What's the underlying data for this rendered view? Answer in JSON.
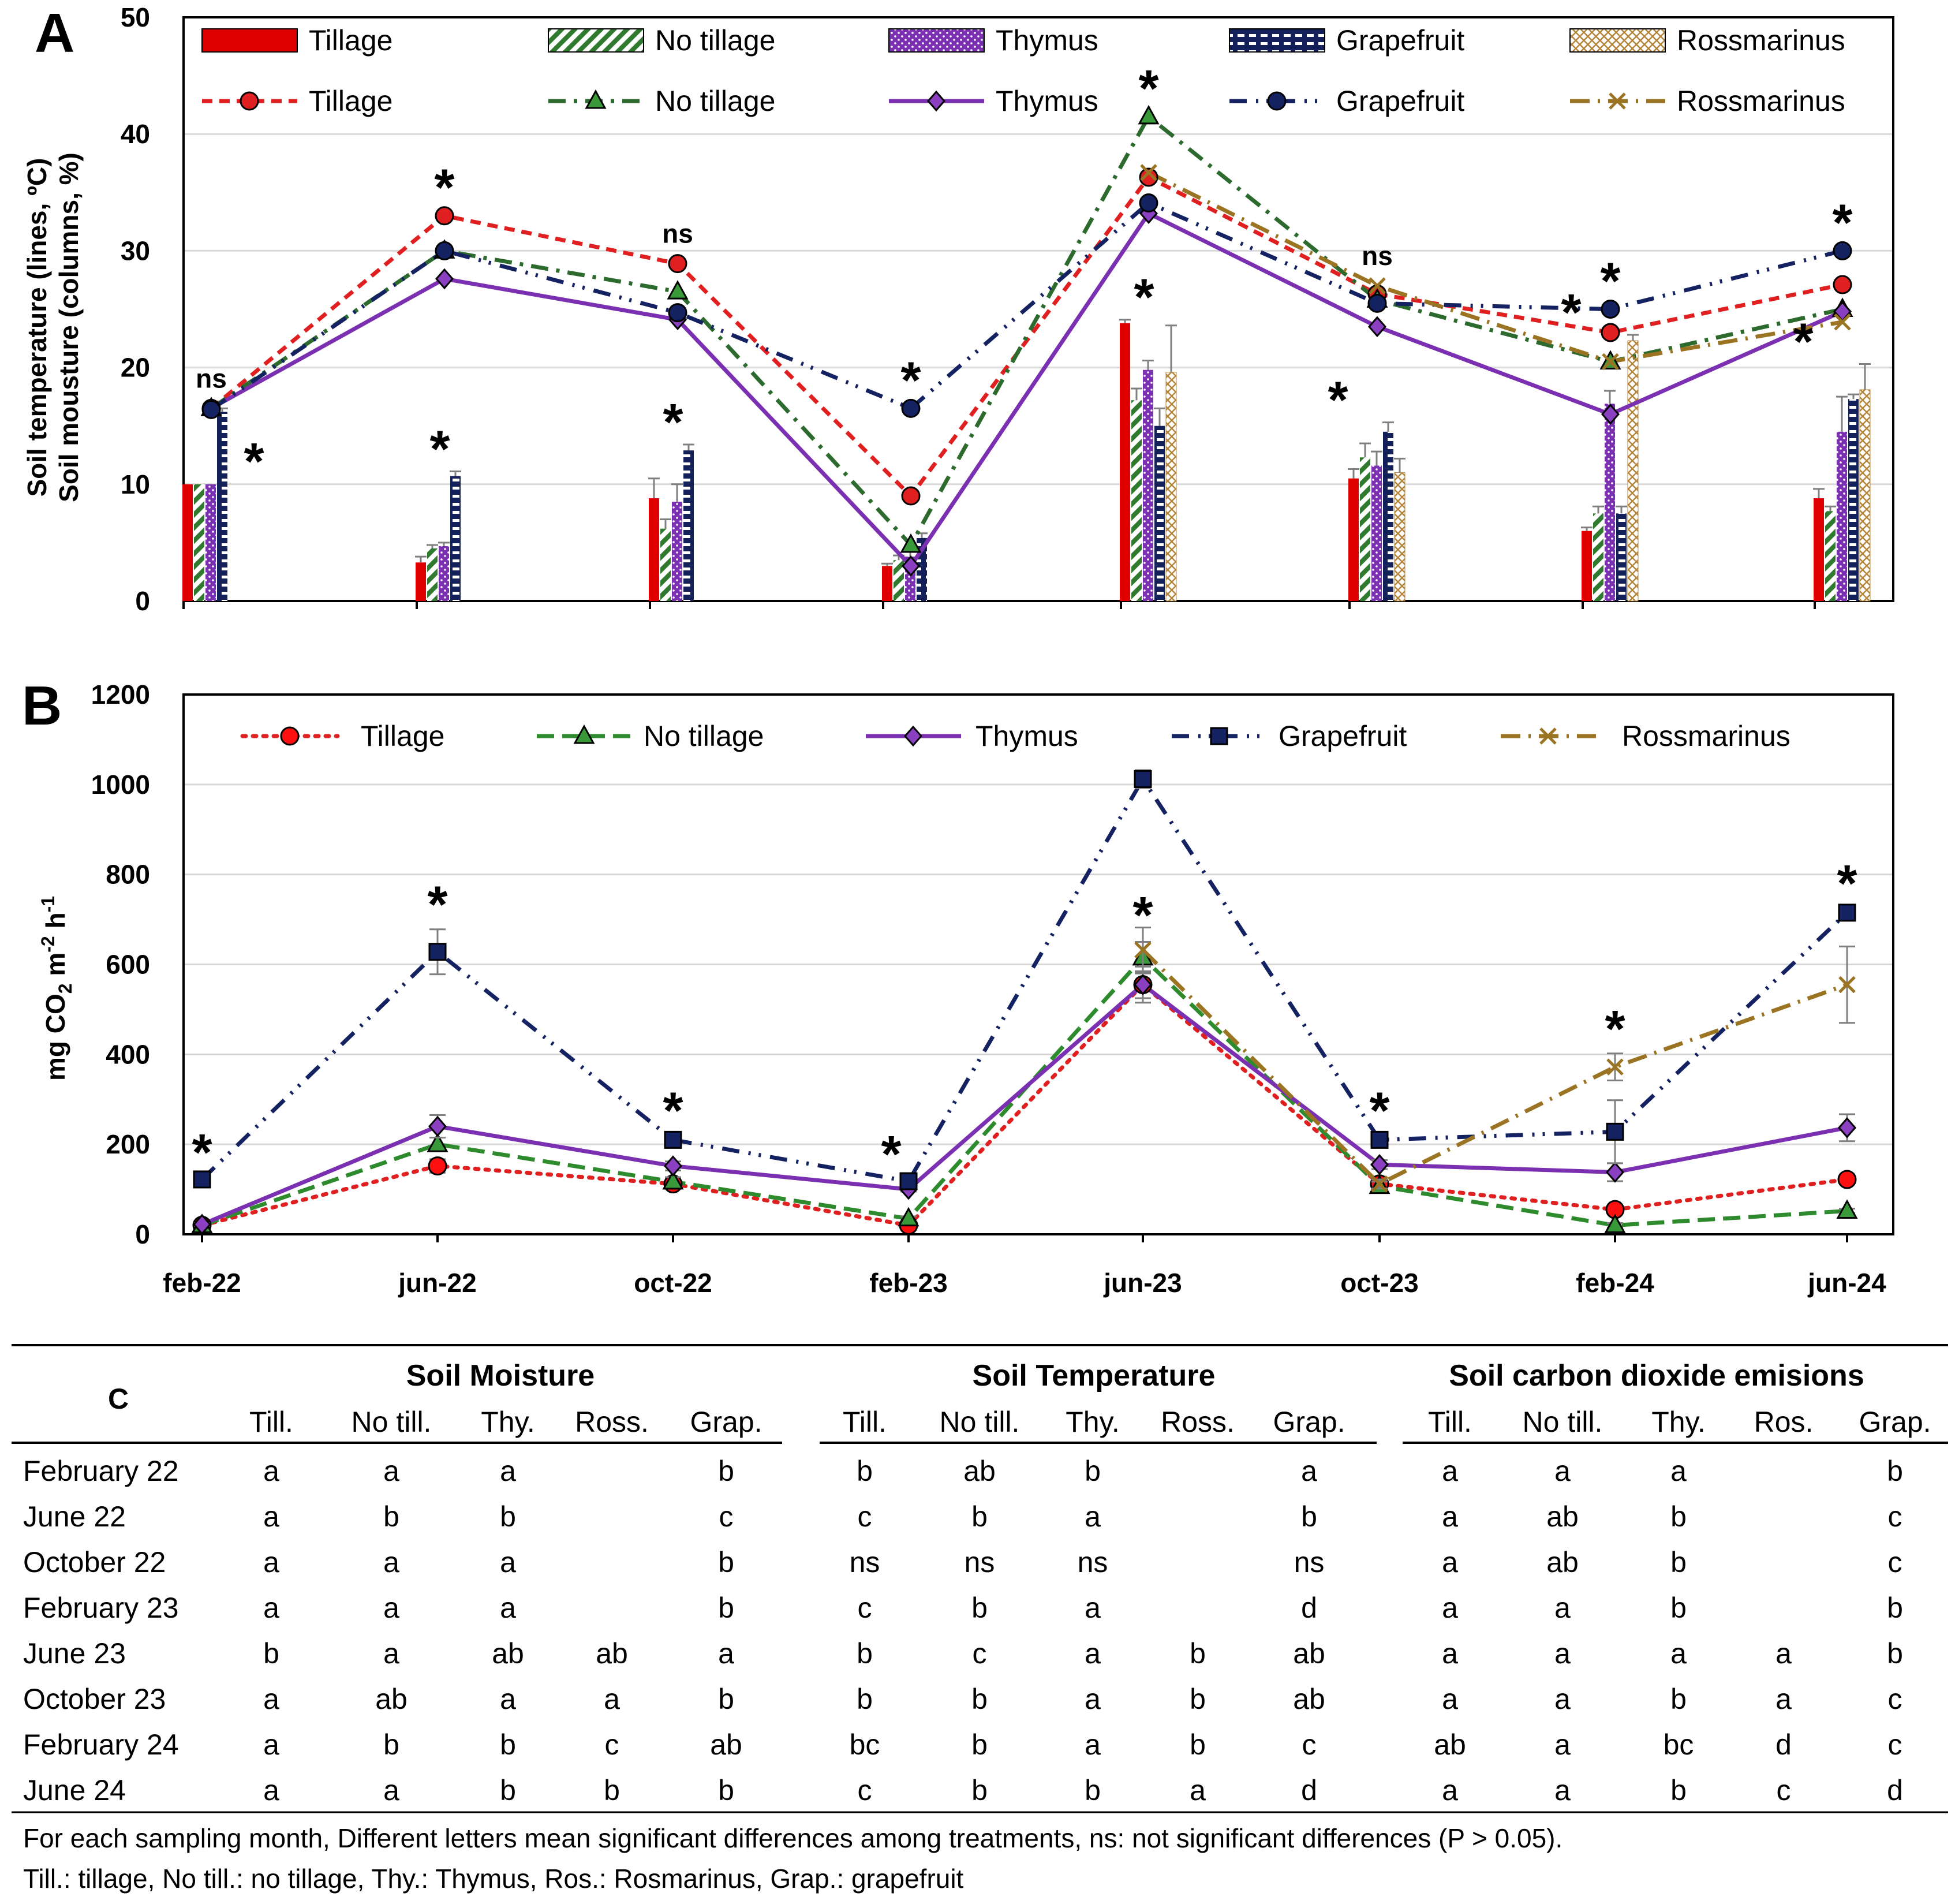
{
  "panel_labels": {
    "a": "A",
    "b": "B",
    "c": "C"
  },
  "chart_data": [
    {
      "id": "A",
      "type": "bar+line",
      "ylabel_line1": "Soil temperature (lines, ºC)",
      "ylabel_line2": "Soil mousture (columns, %)",
      "ylim": [
        0,
        50
      ],
      "yticks": [
        "0",
        "10",
        "20",
        "30",
        "40",
        "50"
      ],
      "categories": [
        "feb-22",
        "jun-22",
        "oct-22",
        "feb-23",
        "jun-23",
        "oct-23",
        "feb-24",
        "jun-24"
      ],
      "bar_series": [
        {
          "name": "Tillage",
          "color": "#e00000",
          "values": [
            10,
            3.3,
            8.8,
            3,
            23.8,
            10.5,
            6,
            8.8
          ],
          "errors": [
            0,
            0.5,
            1.7,
            0.2,
            0.3,
            0.8,
            0.3,
            0.8
          ]
        },
        {
          "name": "No tillage",
          "color": "#2f7a2f",
          "values": [
            10,
            4.5,
            6.2,
            3.5,
            17.2,
            12.3,
            7.5,
            7.7
          ],
          "errors": [
            0,
            0.3,
            0.8,
            0.4,
            1.0,
            1.2,
            0.6,
            0.4
          ]
        },
        {
          "name": "Thymus",
          "color": "#7a30b0",
          "values": [
            10,
            4.7,
            8.5,
            3.8,
            19.8,
            11.6,
            16.9,
            14.5
          ],
          "errors": [
            0,
            0.3,
            1.5,
            0.5,
            0.8,
            1.2,
            1.1,
            3.0
          ]
        },
        {
          "name": "Grapefruit",
          "color": "#14205a",
          "values": [
            16.2,
            10.7,
            12.9,
            5.4,
            15.0,
            14.5,
            7.5,
            17.3
          ],
          "errors": [
            0.3,
            0.4,
            0.5,
            0.4,
            1.5,
            0.8,
            0.6,
            0.4
          ]
        },
        {
          "name": "Rossmarinus",
          "color": "#b5853a",
          "values": [
            null,
            null,
            null,
            null,
            19.6,
            11.0,
            22.3,
            18.1
          ],
          "errors": [
            0,
            0,
            0,
            0,
            4.0,
            1.2,
            0.5,
            2.2
          ]
        }
      ],
      "line_series": [
        {
          "name": "Tillage",
          "color": "#e02020",
          "values": [
            16.5,
            33.0,
            28.9,
            9.0,
            36.3,
            26.3,
            23.0,
            27.1
          ]
        },
        {
          "name": "No tillage",
          "color": "#2d6a2d",
          "values": [
            16.5,
            30.0,
            26.5,
            4.8,
            41.5,
            25.8,
            20.5,
            25.0
          ]
        },
        {
          "name": "Thymus",
          "color": "#7a30b0",
          "values": [
            16.5,
            27.6,
            24.1,
            3.0,
            33.2,
            23.5,
            16.0,
            24.8
          ]
        },
        {
          "name": "Grapefruit",
          "color": "#142262",
          "values": [
            16.4,
            30.0,
            24.7,
            16.5,
            34.1,
            25.5,
            25.0,
            30.0
          ]
        },
        {
          "name": "Rossmarinus",
          "color": "#9a7422",
          "values": [
            null,
            null,
            null,
            null,
            36.7,
            27.0,
            20.5,
            23.9
          ]
        }
      ],
      "line_annotations": [
        "ns",
        "*",
        "ns",
        "*",
        "*",
        "ns",
        "*",
        "*"
      ],
      "bar_annotations": [
        "*",
        "*",
        "*",
        null,
        "*",
        "*",
        "*",
        "*"
      ]
    },
    {
      "id": "B",
      "type": "line",
      "ylabel": "mg CO",
      "ylabel_sub": "2",
      "ylabel_rest": " m",
      "ylabel_sup1": "-2",
      "ylabel_mid": " h",
      "ylabel_sup2": "-1",
      "ylim": [
        0,
        1200
      ],
      "yticks": [
        "0",
        "200",
        "400",
        "600",
        "800",
        "1000",
        "1200"
      ],
      "categories": [
        "feb-22",
        "jun-22",
        "oct-22",
        "feb-23",
        "jun-23",
        "oct-23",
        "feb-24",
        "jun-24"
      ],
      "series": [
        {
          "name": "Tillage",
          "color": "#e02020",
          "values": [
            20,
            152,
            112,
            20,
            555,
            112,
            55,
            122
          ],
          "errors": [
            0,
            15,
            10,
            0,
            30,
            10,
            10,
            8
          ]
        },
        {
          "name": "No tillage",
          "color": "#2d8a2d",
          "values": [
            20,
            200,
            117,
            35,
            615,
            107,
            20,
            52
          ],
          "errors": [
            0,
            15,
            10,
            5,
            35,
            10,
            5,
            5
          ]
        },
        {
          "name": "Thymus",
          "color": "#7a30b0",
          "values": [
            22,
            240,
            152,
            100,
            555,
            155,
            138,
            237
          ],
          "errors": [
            3,
            25,
            10,
            5,
            40,
            10,
            20,
            30
          ]
        },
        {
          "name": "Grapefruit",
          "color": "#142262",
          "values": [
            122,
            628,
            210,
            118,
            1012,
            210,
            228,
            715
          ],
          "errors": [
            5,
            50,
            10,
            5,
            20,
            10,
            70,
            10
          ]
        },
        {
          "name": "Rossmarinus",
          "color": "#9a7422",
          "values": [
            null,
            null,
            null,
            null,
            632,
            112,
            372,
            555
          ],
          "errors": [
            0,
            0,
            0,
            0,
            50,
            10,
            30,
            85
          ]
        }
      ],
      "annotations": [
        "*",
        "*",
        "*",
        "*",
        "*",
        "*",
        "*",
        "*"
      ]
    }
  ],
  "table": {
    "groups": [
      "Soil Moisture",
      "Soil Temperature",
      "Soil carbon dioxide emisions"
    ],
    "subheaders": [
      [
        "Till.",
        "No till.",
        "Thy.",
        "Ross.",
        "Grap."
      ],
      [
        "Till.",
        "No till.",
        "Thy.",
        "Ross.",
        "Grap."
      ],
      [
        "Till.",
        "No till.",
        "Thy.",
        "Ros.",
        "Grap."
      ]
    ],
    "rows": [
      {
        "label": "February 22",
        "cells": [
          "a",
          "a",
          "a",
          "",
          "b",
          "b",
          "ab",
          "b",
          "",
          "a",
          "a",
          "a",
          "a",
          "",
          "b"
        ]
      },
      {
        "label": "June 22",
        "cells": [
          "a",
          "b",
          "b",
          "",
          "c",
          "c",
          "b",
          "a",
          "",
          "b",
          "a",
          "ab",
          "b",
          "",
          "c"
        ]
      },
      {
        "label": "October 22",
        "cells": [
          "a",
          "a",
          "a",
          "",
          "b",
          "ns",
          "ns",
          "ns",
          "",
          "ns",
          "a",
          "ab",
          "b",
          "",
          "c"
        ]
      },
      {
        "label": "February 23",
        "cells": [
          "a",
          "a",
          "a",
          "",
          "b",
          "c",
          "b",
          "a",
          "",
          "d",
          "a",
          "a",
          "b",
          "",
          "b"
        ]
      },
      {
        "label": "June 23",
        "cells": [
          "b",
          "a",
          "ab",
          "ab",
          "a",
          "b",
          "c",
          "a",
          "b",
          "ab",
          "a",
          "a",
          "a",
          "a",
          "b"
        ]
      },
      {
        "label": "October 23",
        "cells": [
          "a",
          "ab",
          "a",
          "a",
          "b",
          "b",
          "b",
          "a",
          "b",
          "ab",
          "a",
          "a",
          "b",
          "a",
          "c"
        ]
      },
      {
        "label": "February 24",
        "cells": [
          "a",
          "b",
          "b",
          "c",
          "ab",
          "bc",
          "b",
          "a",
          "b",
          "c",
          "ab",
          "a",
          "bc",
          "d",
          "c"
        ]
      },
      {
        "label": "June 24",
        "cells": [
          "a",
          "a",
          "b",
          "b",
          "b",
          "c",
          "b",
          "b",
          "a",
          "d",
          "a",
          "a",
          "b",
          "c",
          "d"
        ]
      }
    ],
    "footnote1": "For each sampling month, Different letters mean significant differences among treatments, ns: not significant differences (P > 0.05).",
    "footnote2": "Till.: tillage, No till.: no tillage, Thy.: Thymus, Ros.: Rosmarinus, Grap.: grapefruit"
  }
}
